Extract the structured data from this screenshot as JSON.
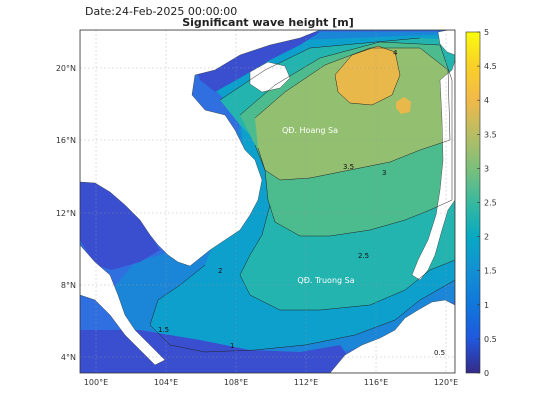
{
  "header": {
    "date_text": "Date:24-Feb-2025 00:00:00",
    "title": "Significant wave height [m]"
  },
  "map": {
    "lon_range": [
      99,
      120.4
    ],
    "lat_range": [
      3,
      22
    ],
    "lon_ticks": [
      "100°E",
      "104°E",
      "108°E",
      "112°E",
      "116°E",
      "120°E"
    ],
    "lat_ticks": [
      "4°N",
      "8°N",
      "12°N",
      "16°N",
      "20°N"
    ],
    "place_labels": [
      "QĐ. Hoang Sa",
      "QĐ. Truong Sa"
    ],
    "land_color": "#ffffff",
    "grid": true
  },
  "colorbar": {
    "min": 0,
    "max": 5,
    "tick_labels": [
      "0",
      "0.5",
      "1",
      "1.5",
      "2",
      "2.5",
      "3",
      "3.5",
      "4",
      "4.5",
      "5"
    ],
    "colormap": "parula",
    "colors": [
      "#352a87",
      "#2058de",
      "#0f77db",
      "#1390d4",
      "#07a9c2",
      "#38b99e",
      "#7cbf7b",
      "#b7bd64",
      "#f1b94a",
      "#f9d029",
      "#f9fb0e"
    ]
  },
  "contour_labels": [
    "4",
    "3.5",
    "3",
    "2.5",
    "2",
    "1.5",
    "1",
    "0.5"
  ]
}
